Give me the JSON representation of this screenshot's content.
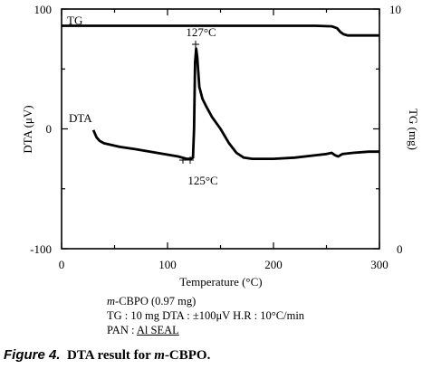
{
  "chart_data": {
    "type": "line",
    "xlabel": "Temperature (°C)",
    "ylabel_left": "DTA (μV)",
    "ylabel_right": "TG (mg)",
    "xlim": [
      0,
      300
    ],
    "ylim_left": [
      -100,
      100
    ],
    "ylim_right": [
      0,
      10
    ],
    "x_ticks": [
      "0",
      "100",
      "200",
      "300"
    ],
    "y_ticks_left": [
      "100",
      "0",
      "-100"
    ],
    "y_ticks_right": [
      "10",
      "0"
    ],
    "series": [
      {
        "name": "TG",
        "axis": "right",
        "x": [
          0,
          50,
          100,
          150,
          200,
          240,
          255,
          260,
          263,
          266,
          270,
          280,
          300
        ],
        "y": [
          9.3,
          9.3,
          9.3,
          9.3,
          9.3,
          9.3,
          9.28,
          9.2,
          9.05,
          8.95,
          8.9,
          8.9,
          8.9
        ]
      },
      {
        "name": "DTA",
        "axis": "left",
        "x": [
          30,
          33,
          36,
          40,
          45,
          55,
          70,
          90,
          110,
          118,
          122,
          124,
          125,
          126,
          127,
          128,
          130,
          133,
          137,
          142,
          150,
          158,
          165,
          172,
          180,
          200,
          220,
          240,
          250,
          255,
          258,
          261,
          265,
          275,
          290,
          300
        ],
        "y": [
          -1,
          -7,
          -10,
          -12,
          -13,
          -15,
          -17,
          -20,
          -23,
          -25,
          -25,
          -24,
          0,
          55,
          67,
          60,
          35,
          25,
          18,
          10,
          0,
          -12,
          -20,
          -24,
          -25,
          -25,
          -24,
          -22,
          -21,
          -20,
          -22,
          -23,
          -21,
          -20,
          -19,
          -19
        ]
      }
    ],
    "annotations": [
      {
        "text": "127°C",
        "x": 127,
        "y": 67
      },
      {
        "text": "125°C",
        "x": 125,
        "y": -25
      }
    ]
  },
  "sample_info": {
    "compound_italic": "m",
    "compound_rest": "-CBPO (0.97 mg)",
    "conditions": "TG : 10 mg  DTA : ±100μV  H.R : 10°C/min",
    "pan_label": "PAN : ",
    "pan_value": "Al SEAL"
  },
  "caption": {
    "label": "Figure 4.",
    "text_pre": "DTA result for ",
    "text_italic": "m",
    "text_post": "-CBPO."
  }
}
